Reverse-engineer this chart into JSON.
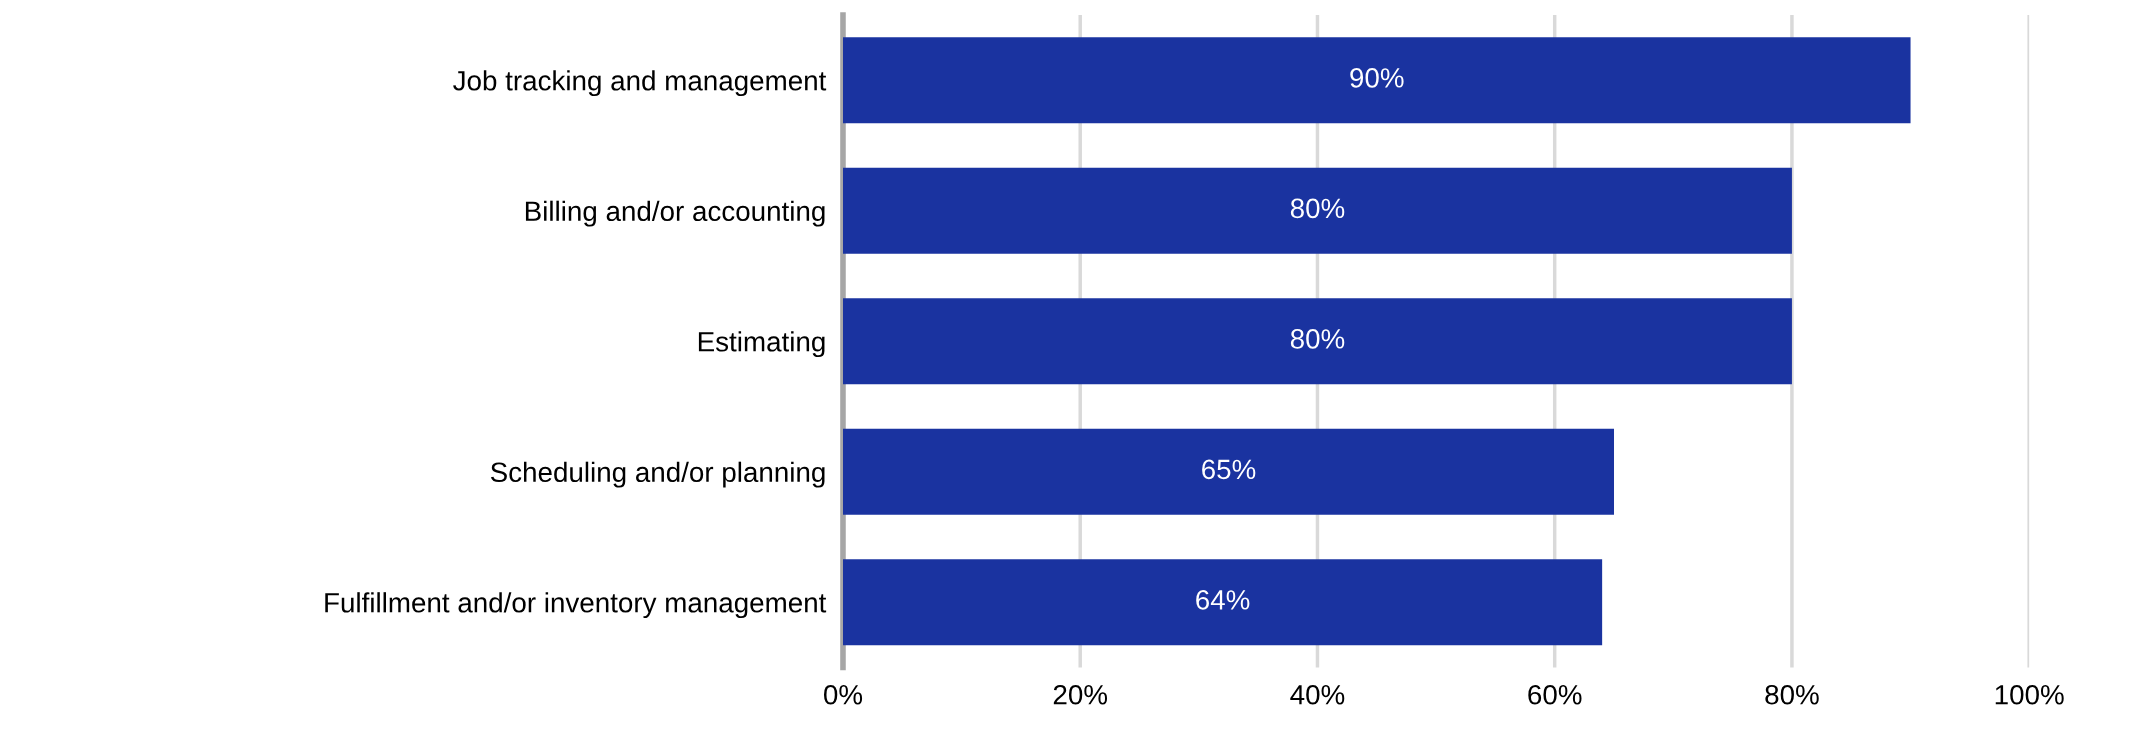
{
  "chart_data": {
    "type": "bar",
    "orientation": "horizontal",
    "categories": [
      "Job tracking and management",
      "Billing and/or accounting",
      "Estimating",
      "Scheduling and/or planning",
      "Fulfillment and/or inventory management"
    ],
    "values": [
      90,
      80,
      80,
      65,
      64
    ],
    "color": "#1a33a0",
    "value_labels": [
      "90%",
      "80%",
      "80%",
      "65%",
      "64%"
    ],
    "xlim": [
      0,
      100
    ],
    "xticks": [
      {
        "value": 0,
        "label": "0%"
      },
      {
        "value": 20,
        "label": "20%"
      },
      {
        "value": 40,
        "label": "40%"
      },
      {
        "value": 60,
        "label": "60%"
      },
      {
        "value": 80,
        "label": "80%"
      },
      {
        "value": 100,
        "label": "100%"
      }
    ],
    "grid": "x",
    "legend": false
  }
}
